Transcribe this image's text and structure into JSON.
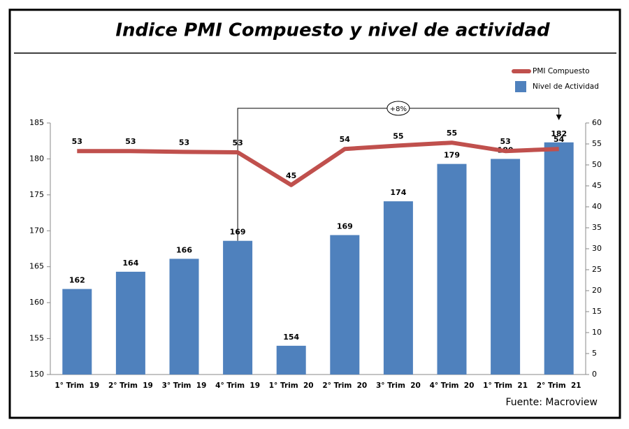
{
  "chart_data": {
    "type": "bar",
    "title": "Indice PMI Compuesto y nivel de actividad",
    "source": "Fuente: Macroview",
    "annotation": "+8%",
    "categories": [
      "1° Trim  19",
      "2° Trim  19",
      "3° Trim  19",
      "4° Trim  19",
      "1° Trim  20",
      "2° Trim  20",
      "3° Trim  20",
      "4° Trim  20",
      "1° Trim  21",
      "2° Trim  21"
    ],
    "series": [
      {
        "name": "PMI Compuesto",
        "type": "line",
        "axis": "y2",
        "color": "#c0504d",
        "values": [
          53.3,
          53.3,
          53.1,
          53.0,
          45.2,
          53.8,
          54.6,
          55.3,
          53.3,
          53.8
        ],
        "value_labels": [
          "53",
          "53",
          "53",
          "53",
          "45",
          "54",
          "55",
          "55",
          "53",
          "54"
        ]
      },
      {
        "name": "Nivel de Actividad",
        "type": "bar",
        "axis": "y",
        "color": "#4f81bd",
        "values": [
          161.9,
          164.3,
          166.1,
          168.6,
          154.0,
          169.4,
          174.1,
          179.3,
          180.0,
          182.3
        ],
        "value_labels": [
          "162",
          "164",
          "166",
          "169",
          "154",
          "169",
          "174",
          "179",
          "180",
          "182"
        ]
      }
    ],
    "ylim": [
      150,
      185
    ],
    "yticks": [
      150,
      155,
      160,
      165,
      170,
      175,
      180,
      185
    ],
    "y2lim": [
      0,
      60
    ],
    "y2ticks": [
      0,
      5,
      10,
      15,
      20,
      25,
      30,
      35,
      40,
      45,
      50,
      55,
      60
    ],
    "legend": "top-right",
    "grid": false
  }
}
